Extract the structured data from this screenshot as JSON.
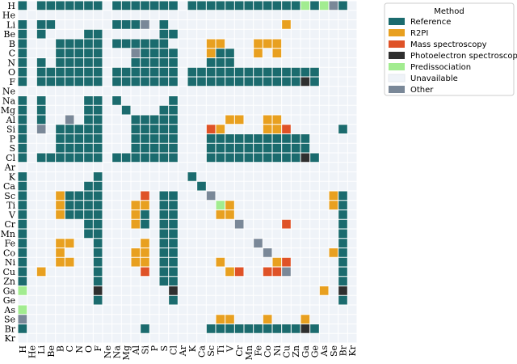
{
  "chart_data": {
    "type": "heatmap",
    "categories": [
      "H",
      "He",
      "Li",
      "Be",
      "B",
      "C",
      "N",
      "O",
      "F",
      "Ne",
      "Na",
      "Mg",
      "Al",
      "Si",
      "P",
      "S",
      "Cl",
      "Ar",
      "K",
      "Ca",
      "Sc",
      "Ti",
      "V",
      "Cr",
      "Mn",
      "Fe",
      "Co",
      "Ni",
      "Cu",
      "Zn",
      "Ga",
      "Ge",
      "As",
      "Se",
      "Br",
      "Kr"
    ],
    "legend_title": "Method",
    "legend": "upper right",
    "series": [
      {
        "name": "Reference",
        "color": "#1b6b6e"
      },
      {
        "name": "R2PI",
        "color": "#e8a020"
      },
      {
        "name": "Mass spectroscopy",
        "color": "#df5227"
      },
      {
        "name": "Photoelectron spectroscopy",
        "color": "#2f2f2f"
      },
      {
        "name": "Predissociation",
        "color": "#a2ec90"
      },
      {
        "name": "Unavailable",
        "color": "#eff3f8"
      },
      {
        "name": "Other",
        "color": "#7a8898"
      }
    ],
    "values": [
      [
        0,
        5,
        0,
        0,
        0,
        0,
        0,
        0,
        0,
        5,
        0,
        0,
        0,
        0,
        0,
        0,
        0,
        5,
        0,
        0,
        0,
        0,
        0,
        0,
        0,
        0,
        0,
        0,
        0,
        0,
        4,
        0,
        4,
        6,
        0,
        5
      ],
      [
        5,
        5,
        5,
        5,
        5,
        5,
        5,
        5,
        5,
        5,
        5,
        5,
        5,
        5,
        5,
        5,
        5,
        5,
        5,
        5,
        5,
        5,
        5,
        5,
        5,
        5,
        5,
        5,
        5,
        5,
        5,
        5,
        5,
        5,
        5,
        5
      ],
      [
        0,
        5,
        0,
        0,
        5,
        5,
        5,
        5,
        5,
        5,
        0,
        0,
        0,
        6,
        5,
        0,
        5,
        5,
        5,
        5,
        5,
        5,
        5,
        5,
        5,
        5,
        5,
        5,
        1,
        5,
        5,
        5,
        5,
        5,
        5,
        5
      ],
      [
        0,
        5,
        0,
        5,
        5,
        5,
        5,
        0,
        0,
        5,
        5,
        5,
        5,
        5,
        5,
        0,
        0,
        5,
        5,
        5,
        5,
        5,
        5,
        5,
        5,
        5,
        5,
        5,
        5,
        5,
        5,
        5,
        5,
        5,
        5,
        5
      ],
      [
        0,
        5,
        5,
        5,
        0,
        0,
        0,
        0,
        0,
        5,
        0,
        0,
        0,
        0,
        0,
        0,
        5,
        5,
        5,
        5,
        1,
        1,
        5,
        5,
        5,
        1,
        1,
        1,
        5,
        5,
        5,
        5,
        5,
        5,
        5,
        5
      ],
      [
        0,
        5,
        5,
        5,
        0,
        0,
        0,
        0,
        0,
        5,
        5,
        5,
        6,
        0,
        0,
        0,
        0,
        5,
        5,
        5,
        1,
        0,
        0,
        5,
        5,
        1,
        5,
        1,
        5,
        5,
        5,
        5,
        5,
        5,
        5,
        5
      ],
      [
        0,
        5,
        0,
        5,
        0,
        0,
        0,
        0,
        0,
        5,
        5,
        5,
        0,
        0,
        0,
        0,
        0,
        5,
        5,
        5,
        0,
        0,
        0,
        5,
        5,
        5,
        5,
        5,
        5,
        5,
        5,
        5,
        5,
        5,
        5,
        5
      ],
      [
        0,
        5,
        0,
        0,
        0,
        0,
        0,
        0,
        0,
        5,
        0,
        0,
        0,
        0,
        0,
        0,
        0,
        5,
        0,
        0,
        0,
        0,
        0,
        0,
        0,
        0,
        0,
        0,
        0,
        0,
        0,
        0,
        5,
        5,
        5,
        5
      ],
      [
        0,
        5,
        0,
        0,
        0,
        0,
        0,
        0,
        0,
        5,
        0,
        0,
        0,
        0,
        0,
        0,
        0,
        5,
        0,
        0,
        0,
        0,
        0,
        0,
        0,
        0,
        0,
        0,
        0,
        0,
        3,
        0,
        5,
        5,
        5,
        5
      ],
      [
        5,
        5,
        5,
        5,
        5,
        5,
        5,
        5,
        5,
        5,
        5,
        5,
        5,
        5,
        5,
        5,
        5,
        5,
        5,
        5,
        5,
        5,
        5,
        5,
        5,
        5,
        5,
        5,
        5,
        5,
        5,
        5,
        5,
        5,
        5,
        5
      ],
      [
        0,
        5,
        0,
        5,
        5,
        5,
        5,
        0,
        0,
        5,
        0,
        5,
        5,
        5,
        5,
        5,
        0,
        5,
        5,
        5,
        5,
        5,
        5,
        5,
        5,
        5,
        5,
        5,
        5,
        5,
        5,
        5,
        5,
        5,
        5,
        5
      ],
      [
        0,
        5,
        0,
        5,
        5,
        5,
        5,
        0,
        0,
        5,
        5,
        0,
        5,
        5,
        5,
        0,
        0,
        5,
        5,
        5,
        5,
        5,
        5,
        5,
        5,
        5,
        5,
        5,
        5,
        5,
        5,
        5,
        5,
        5,
        5,
        5
      ],
      [
        0,
        5,
        0,
        5,
        5,
        6,
        5,
        0,
        0,
        5,
        5,
        5,
        0,
        0,
        0,
        0,
        0,
        5,
        5,
        5,
        5,
        5,
        1,
        1,
        5,
        5,
        1,
        1,
        5,
        5,
        5,
        5,
        5,
        5,
        5,
        5
      ],
      [
        0,
        5,
        6,
        5,
        0,
        0,
        0,
        0,
        0,
        5,
        5,
        5,
        0,
        0,
        0,
        0,
        0,
        5,
        5,
        5,
        2,
        1,
        5,
        5,
        5,
        5,
        1,
        1,
        2,
        5,
        5,
        5,
        5,
        5,
        0,
        5
      ],
      [
        0,
        5,
        5,
        5,
        0,
        0,
        0,
        0,
        0,
        5,
        5,
        5,
        0,
        0,
        0,
        0,
        0,
        5,
        5,
        5,
        0,
        0,
        0,
        0,
        0,
        0,
        0,
        0,
        0,
        0,
        0,
        5,
        5,
        5,
        5,
        5
      ],
      [
        0,
        5,
        5,
        5,
        0,
        0,
        0,
        0,
        0,
        5,
        5,
        5,
        0,
        0,
        0,
        0,
        0,
        5,
        5,
        5,
        0,
        0,
        0,
        0,
        0,
        0,
        0,
        0,
        0,
        0,
        0,
        5,
        5,
        5,
        5,
        5
      ],
      [
        0,
        5,
        0,
        0,
        0,
        0,
        0,
        0,
        0,
        5,
        0,
        0,
        0,
        0,
        0,
        0,
        0,
        5,
        5,
        5,
        0,
        0,
        0,
        0,
        0,
        0,
        0,
        0,
        0,
        0,
        3,
        0,
        5,
        5,
        5,
        5
      ],
      [
        5,
        5,
        5,
        5,
        5,
        5,
        5,
        5,
        5,
        5,
        5,
        5,
        5,
        5,
        5,
        5,
        5,
        5,
        5,
        5,
        5,
        5,
        5,
        5,
        5,
        5,
        5,
        5,
        5,
        5,
        5,
        5,
        5,
        5,
        5,
        5
      ],
      [
        0,
        5,
        5,
        5,
        5,
        5,
        5,
        5,
        0,
        5,
        5,
        5,
        5,
        5,
        5,
        5,
        5,
        5,
        0,
        5,
        5,
        5,
        5,
        5,
        5,
        5,
        5,
        5,
        5,
        5,
        5,
        5,
        5,
        5,
        5,
        5
      ],
      [
        0,
        5,
        5,
        5,
        5,
        5,
        5,
        0,
        0,
        5,
        5,
        5,
        5,
        5,
        5,
        5,
        5,
        5,
        5,
        0,
        5,
        5,
        5,
        5,
        5,
        5,
        5,
        5,
        5,
        5,
        5,
        5,
        5,
        5,
        5,
        5
      ],
      [
        0,
        5,
        5,
        5,
        1,
        0,
        0,
        0,
        0,
        5,
        5,
        5,
        5,
        2,
        5,
        0,
        0,
        5,
        5,
        5,
        6,
        5,
        5,
        5,
        5,
        5,
        5,
        5,
        5,
        5,
        5,
        5,
        5,
        1,
        0,
        5
      ],
      [
        0,
        5,
        5,
        5,
        1,
        0,
        0,
        0,
        0,
        5,
        5,
        5,
        1,
        1,
        5,
        0,
        0,
        5,
        5,
        5,
        5,
        4,
        1,
        5,
        5,
        5,
        5,
        5,
        5,
        5,
        5,
        5,
        5,
        1,
        0,
        5
      ],
      [
        0,
        5,
        5,
        5,
        1,
        0,
        0,
        0,
        0,
        5,
        5,
        5,
        1,
        0,
        5,
        0,
        0,
        5,
        5,
        5,
        5,
        1,
        1,
        5,
        5,
        5,
        5,
        5,
        5,
        5,
        5,
        5,
        5,
        5,
        0,
        5
      ],
      [
        0,
        5,
        5,
        5,
        5,
        5,
        5,
        0,
        0,
        5,
        5,
        5,
        1,
        0,
        5,
        0,
        0,
        5,
        5,
        5,
        5,
        5,
        5,
        6,
        5,
        5,
        5,
        5,
        2,
        5,
        5,
        5,
        5,
        5,
        0,
        5
      ],
      [
        0,
        5,
        5,
        5,
        5,
        5,
        5,
        0,
        0,
        5,
        5,
        5,
        5,
        5,
        5,
        0,
        0,
        5,
        5,
        5,
        5,
        5,
        5,
        5,
        5,
        5,
        5,
        5,
        5,
        5,
        5,
        5,
        5,
        5,
        0,
        5
      ],
      [
        0,
        5,
        5,
        5,
        1,
        1,
        5,
        5,
        0,
        5,
        5,
        5,
        5,
        1,
        5,
        0,
        0,
        5,
        5,
        5,
        5,
        5,
        5,
        5,
        5,
        6,
        5,
        5,
        5,
        5,
        5,
        5,
        5,
        5,
        0,
        5
      ],
      [
        0,
        5,
        5,
        5,
        1,
        5,
        5,
        5,
        0,
        5,
        5,
        5,
        1,
        1,
        5,
        0,
        0,
        5,
        5,
        5,
        5,
        5,
        5,
        5,
        5,
        5,
        6,
        5,
        5,
        5,
        5,
        5,
        5,
        1,
        0,
        5
      ],
      [
        0,
        5,
        5,
        5,
        1,
        1,
        5,
        5,
        0,
        5,
        5,
        5,
        1,
        1,
        5,
        0,
        0,
        5,
        5,
        5,
        5,
        1,
        5,
        5,
        5,
        5,
        5,
        1,
        2,
        5,
        5,
        5,
        5,
        5,
        0,
        5
      ],
      [
        0,
        5,
        1,
        5,
        5,
        5,
        5,
        5,
        0,
        5,
        5,
        5,
        5,
        2,
        5,
        0,
        0,
        5,
        5,
        5,
        5,
        5,
        1,
        2,
        5,
        5,
        2,
        2,
        6,
        5,
        5,
        5,
        5,
        5,
        0,
        5
      ],
      [
        0,
        5,
        5,
        5,
        5,
        5,
        5,
        5,
        0,
        5,
        5,
        5,
        5,
        5,
        5,
        0,
        0,
        5,
        5,
        5,
        5,
        5,
        5,
        5,
        5,
        5,
        5,
        5,
        5,
        5,
        5,
        5,
        5,
        5,
        0,
        5
      ],
      [
        4,
        5,
        5,
        5,
        5,
        5,
        5,
        5,
        3,
        5,
        5,
        5,
        5,
        5,
        5,
        5,
        3,
        5,
        5,
        5,
        5,
        5,
        5,
        5,
        5,
        5,
        5,
        5,
        5,
        5,
        5,
        5,
        1,
        5,
        3,
        5
      ],
      [
        5,
        5,
        5,
        5,
        5,
        5,
        5,
        5,
        0,
        5,
        5,
        5,
        5,
        5,
        5,
        5,
        0,
        5,
        5,
        5,
        5,
        5,
        5,
        5,
        5,
        5,
        5,
        5,
        5,
        5,
        5,
        5,
        5,
        5,
        0,
        5
      ],
      [
        4,
        5,
        5,
        5,
        5,
        5,
        5,
        5,
        5,
        5,
        5,
        5,
        5,
        5,
        5,
        5,
        5,
        5,
        5,
        5,
        5,
        5,
        5,
        5,
        5,
        5,
        5,
        5,
        5,
        5,
        5,
        5,
        5,
        5,
        5,
        5
      ],
      [
        6,
        5,
        5,
        5,
        5,
        5,
        5,
        5,
        5,
        5,
        5,
        5,
        5,
        5,
        5,
        5,
        5,
        5,
        5,
        5,
        5,
        1,
        1,
        5,
        5,
        5,
        1,
        5,
        5,
        5,
        1,
        5,
        5,
        5,
        5,
        5
      ],
      [
        0,
        5,
        5,
        5,
        5,
        5,
        5,
        5,
        5,
        5,
        5,
        5,
        5,
        0,
        5,
        5,
        5,
        5,
        5,
        5,
        0,
        0,
        0,
        0,
        0,
        0,
        0,
        0,
        0,
        0,
        3,
        0,
        5,
        5,
        5,
        5
      ],
      [
        5,
        5,
        5,
        5,
        5,
        5,
        5,
        5,
        5,
        5,
        5,
        5,
        5,
        5,
        5,
        5,
        5,
        5,
        5,
        5,
        5,
        5,
        5,
        5,
        5,
        5,
        5,
        5,
        5,
        5,
        5,
        5,
        5,
        5,
        5,
        5
      ]
    ]
  }
}
